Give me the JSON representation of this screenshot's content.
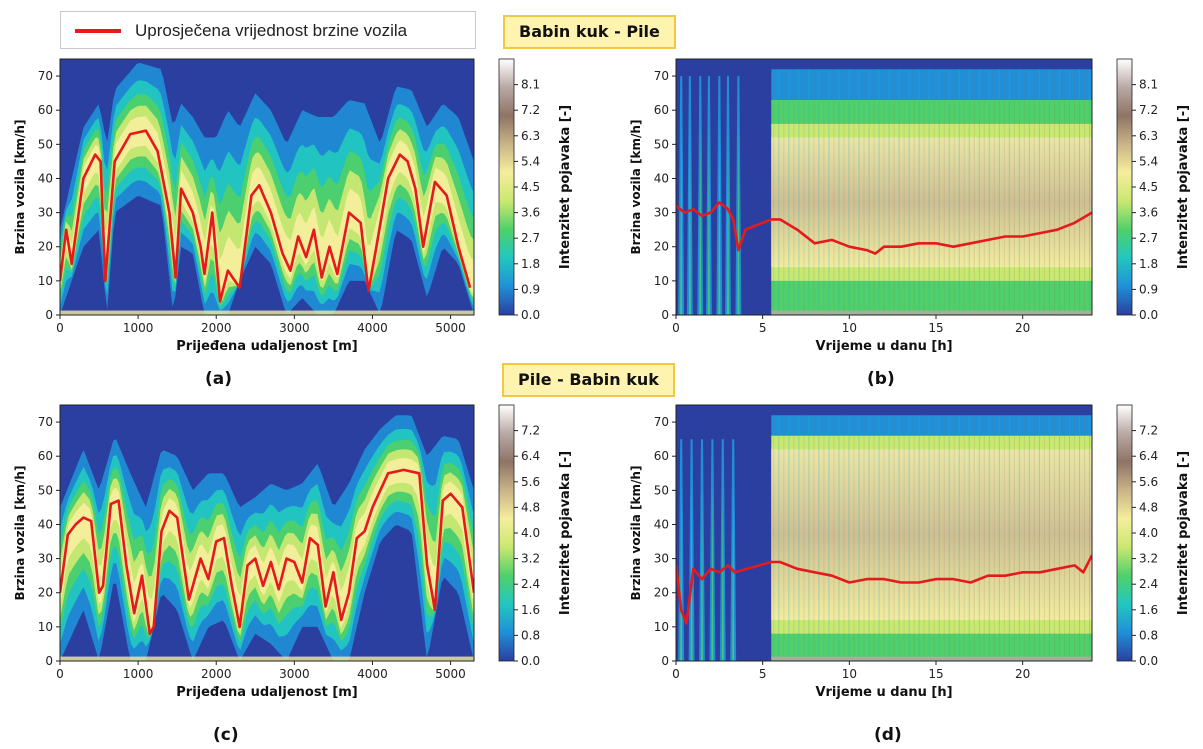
{
  "legend": {
    "label": "Uprosječena vrijednost brzine vozila",
    "line_color": "#e41a1c"
  },
  "route_labels": {
    "top": "Babin kuk - Pile",
    "bottom": "Pile - Babin kuk"
  },
  "colors": {
    "background": "#2b3fa0",
    "mean_line": "#e41a1c",
    "colormap": [
      "#2b3fa0",
      "#1f8fd8",
      "#22c7c0",
      "#4fd06a",
      "#c9e870",
      "#f5ee9c",
      "#c9b487",
      "#8f7464",
      "#b8a9a5",
      "#ffffff"
    ]
  },
  "chart_data": [
    {
      "panel": "(a)",
      "type": "heatmap",
      "xlabel": "Prijeđena udaljenost [m]",
      "ylabel": "Brzina vozila [km/h]",
      "colorbar_label": "Intenzitet pojavaka [-]",
      "xlim": [
        0,
        5300
      ],
      "ylim": [
        0,
        75
      ],
      "xticks": [
        0,
        1000,
        2000,
        3000,
        4000,
        5000
      ],
      "yticks": [
        0,
        10,
        20,
        30,
        40,
        50,
        60,
        70
      ],
      "colorbar_ticks": [
        "0.0",
        "0.9",
        "1.8",
        "2.7",
        "3.6",
        "4.5",
        "5.4",
        "6.3",
        "7.2",
        "8.1"
      ],
      "colorbar_max": 9.0,
      "mean_speed": {
        "x": [
          0,
          80,
          150,
          300,
          450,
          520,
          580,
          700,
          900,
          1100,
          1250,
          1400,
          1480,
          1550,
          1700,
          1800,
          1850,
          1950,
          2050,
          2150,
          2300,
          2450,
          2550,
          2700,
          2850,
          2950,
          3050,
          3150,
          3250,
          3350,
          3450,
          3550,
          3700,
          3850,
          3950,
          4050,
          4200,
          4350,
          4450,
          4550,
          4650,
          4800,
          4950,
          5100,
          5250
        ],
        "y": [
          10,
          25,
          15,
          40,
          47,
          45,
          10,
          45,
          53,
          54,
          48,
          30,
          11,
          37,
          30,
          20,
          12,
          30,
          4,
          13,
          8,
          35,
          38,
          30,
          18,
          13,
          23,
          17,
          25,
          11,
          20,
          12,
          30,
          27,
          7,
          20,
          40,
          47,
          45,
          37,
          20,
          39,
          35,
          20,
          8
        ]
      },
      "envelope": {
        "x": [
          0,
          300,
          500,
          600,
          700,
          1000,
          1300,
          1450,
          1550,
          1700,
          1850,
          2000,
          2150,
          2300,
          2500,
          2700,
          2900,
          3100,
          3300,
          3500,
          3700,
          3900,
          4100,
          4300,
          4500,
          4700,
          4900,
          5100,
          5300
        ],
        "top": [
          25,
          55,
          62,
          50,
          66,
          74,
          72,
          55,
          62,
          58,
          52,
          52,
          60,
          55,
          65,
          60,
          50,
          60,
          58,
          58,
          63,
          62,
          50,
          67,
          66,
          55,
          62,
          58,
          45
        ],
        "bottom": [
          0,
          20,
          25,
          0,
          30,
          35,
          32,
          0,
          20,
          18,
          0,
          0,
          0,
          10,
          20,
          15,
          0,
          5,
          0,
          0,
          10,
          10,
          0,
          25,
          22,
          5,
          20,
          15,
          0
        ]
      }
    },
    {
      "panel": "(b)",
      "type": "heatmap",
      "xlabel": "Vrijeme u danu [h]",
      "ylabel": "Brzina vozila [km/h]",
      "colorbar_label": "Intenzitet pojavaka [-]",
      "xlim": [
        0,
        24
      ],
      "ylim": [
        0,
        75
      ],
      "xticks": [
        0,
        5,
        10,
        15,
        20
      ],
      "yticks": [
        0,
        10,
        20,
        30,
        40,
        50,
        60,
        70
      ],
      "colorbar_ticks": [
        "0.0",
        "0.9",
        "1.8",
        "2.7",
        "3.6",
        "4.5",
        "5.4",
        "6.3",
        "7.2",
        "8.1"
      ],
      "colorbar_max": 9.0,
      "night_spikes": [
        0.3,
        0.8,
        1.4,
        1.9,
        2.5,
        3.0,
        3.6
      ],
      "night_spike_height": 70,
      "gap": [
        4.2,
        5.5
      ],
      "mean_speed": {
        "x": [
          0,
          0.5,
          1,
          1.5,
          2,
          2.5,
          3,
          3.3,
          3.6,
          4,
          5.5,
          6,
          7,
          8,
          9,
          10,
          11,
          11.5,
          12,
          13,
          14,
          15,
          16,
          17,
          18,
          19,
          20,
          21,
          22,
          23,
          24
        ],
        "y": [
          32,
          30,
          31,
          29,
          30,
          33,
          31,
          28,
          19,
          25,
          28,
          28,
          25,
          21,
          22,
          20,
          19,
          18,
          20,
          20,
          21,
          21,
          20,
          21,
          22,
          23,
          23,
          24,
          25,
          27,
          30
        ]
      },
      "band": [
        10,
        52
      ]
    },
    {
      "panel": "(c)",
      "type": "heatmap",
      "xlabel": "Prijeđena udaljenost [m]",
      "ylabel": "Brzina vozila [km/h]",
      "colorbar_label": "Intenzitet pojavaka [-]",
      "xlim": [
        0,
        5300
      ],
      "ylim": [
        0,
        75
      ],
      "xticks": [
        0,
        1000,
        2000,
        3000,
        4000,
        5000
      ],
      "yticks": [
        0,
        10,
        20,
        30,
        40,
        50,
        60,
        70
      ],
      "colorbar_ticks": [
        "0.0",
        "0.8",
        "1.6",
        "2.4",
        "3.2",
        "4.0",
        "4.8",
        "5.6",
        "6.4",
        "7.2"
      ],
      "colorbar_max": 8.0,
      "mean_speed": {
        "x": [
          0,
          100,
          200,
          300,
          400,
          500,
          550,
          650,
          750,
          850,
          950,
          1050,
          1150,
          1200,
          1300,
          1400,
          1500,
          1650,
          1800,
          1900,
          2000,
          2100,
          2200,
          2300,
          2400,
          2500,
          2600,
          2700,
          2800,
          2900,
          3000,
          3100,
          3200,
          3300,
          3400,
          3500,
          3600,
          3700,
          3800,
          3900,
          4000,
          4200,
          4400,
          4600,
          4700,
          4800,
          4900,
          5000,
          5150,
          5300
        ],
        "y": [
          20,
          37,
          40,
          42,
          41,
          20,
          22,
          46,
          47,
          28,
          14,
          25,
          8,
          10,
          38,
          44,
          42,
          18,
          30,
          24,
          35,
          36,
          22,
          10,
          28,
          30,
          22,
          29,
          21,
          30,
          29,
          23,
          36,
          34,
          16,
          26,
          12,
          20,
          36,
          38,
          45,
          55,
          56,
          55,
          28,
          15,
          47,
          49,
          45,
          20
        ]
      },
      "envelope": {
        "x": [
          0,
          300,
          500,
          700,
          900,
          1100,
          1300,
          1500,
          1700,
          1900,
          2100,
          2300,
          2500,
          2700,
          2900,
          3100,
          3300,
          3500,
          3700,
          3900,
          4100,
          4300,
          4500,
          4700,
          4900,
          5100,
          5300
        ],
        "top": [
          45,
          62,
          50,
          66,
          55,
          45,
          62,
          60,
          50,
          55,
          55,
          45,
          48,
          52,
          50,
          52,
          58,
          45,
          52,
          62,
          68,
          72,
          72,
          60,
          66,
          65,
          50
        ],
        "bottom": [
          0,
          15,
          0,
          25,
          0,
          0,
          20,
          15,
          0,
          10,
          12,
          0,
          8,
          5,
          0,
          10,
          10,
          0,
          0,
          20,
          35,
          40,
          38,
          0,
          25,
          20,
          0
        ]
      }
    },
    {
      "panel": "(d)",
      "type": "heatmap",
      "xlabel": "Vrijeme u danu [h]",
      "ylabel": "Brzina vozila [km/h]",
      "colorbar_label": "Intenzitet pojavaka [-]",
      "xlim": [
        0,
        24
      ],
      "ylim": [
        0,
        75
      ],
      "xticks": [
        0,
        5,
        10,
        15,
        20
      ],
      "yticks": [
        0,
        10,
        20,
        30,
        40,
        50,
        60,
        70
      ],
      "colorbar_ticks": [
        "0.0",
        "0.8",
        "1.6",
        "2.4",
        "3.2",
        "4.0",
        "4.8",
        "5.6",
        "6.4",
        "7.2"
      ],
      "colorbar_max": 8.0,
      "night_spikes": [
        0.3,
        0.9,
        1.5,
        2.1,
        2.7,
        3.3
      ],
      "night_spike_height": 65,
      "gap": [
        3.8,
        5.5
      ],
      "mean_speed": {
        "x": [
          0,
          0.3,
          0.6,
          1,
          1.5,
          2,
          2.5,
          3,
          3.4,
          5.5,
          6,
          7,
          8,
          9,
          10,
          11,
          12,
          13,
          14,
          15,
          16,
          17,
          18,
          19,
          20,
          21,
          22,
          23,
          23.5,
          24
        ],
        "y": [
          28,
          15,
          11,
          27,
          24,
          27,
          26,
          28,
          26,
          29,
          29,
          27,
          26,
          25,
          23,
          24,
          24,
          23,
          23,
          24,
          24,
          23,
          25,
          25,
          26,
          26,
          27,
          28,
          26,
          31
        ]
      },
      "band": [
        8,
        62
      ]
    }
  ]
}
